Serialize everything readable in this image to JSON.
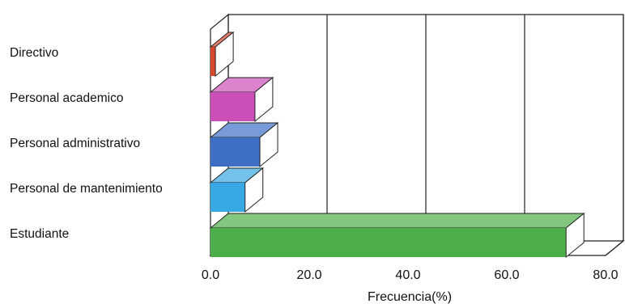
{
  "chart_data": {
    "type": "bar",
    "orientation": "horizontal",
    "style": "3d",
    "categories": [
      "Directivo",
      "Personal academico",
      "Personal administrativo",
      "Personal de mantenimiento",
      "Estudiante"
    ],
    "values": [
      1.0,
      9.0,
      10.0,
      7.0,
      72.0
    ],
    "colors": [
      "#d8482f",
      "#cc4fb8",
      "#3e6fc4",
      "#37a8e4",
      "#4cae4a"
    ],
    "xlabel": "Frecuencia(%)",
    "ylabel": "",
    "title": "",
    "xlim": [
      0,
      80
    ],
    "xticks": [
      "0.0",
      "20.0",
      "40.0",
      "60.0",
      "80.0"
    ],
    "grid": "vertical",
    "legend": "none"
  }
}
